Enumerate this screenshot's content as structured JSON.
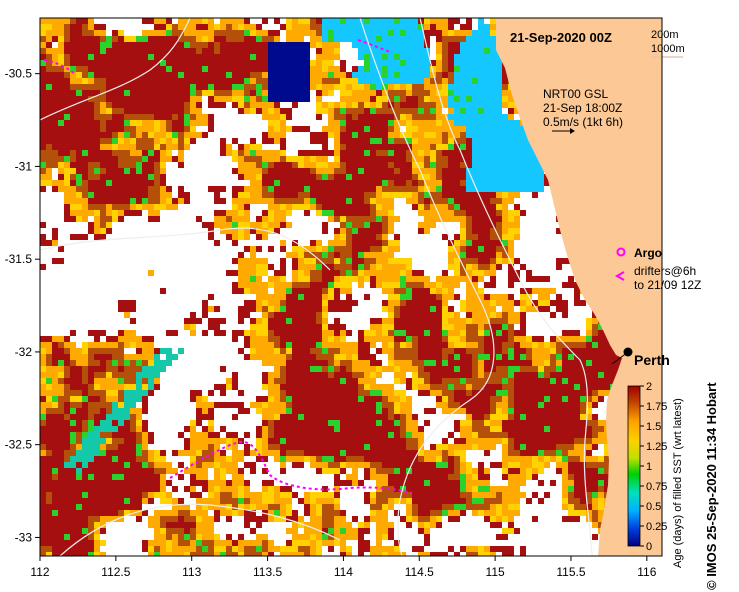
{
  "header": {
    "date_label": "21-Sep-2020 00Z",
    "depth_contour_1": "200m",
    "depth_contour_2": "1000m"
  },
  "current_legend": {
    "line1": "NRT00 GSL",
    "line2": "21-Sep 18:00Z",
    "line3": "0.5m/s (1kt 6h)"
  },
  "markers": {
    "argo_label": "Argo",
    "drifters_line1": "drifters@6h",
    "drifters_line2": "to 21/09 12Z"
  },
  "city": {
    "name": "Perth",
    "lon": 115.86,
    "lat": -31.95
  },
  "colorbar": {
    "title": "Age (days) of filled SST (wrt latest)",
    "ticks": [
      "0",
      "0.25",
      "0.5",
      "0.75",
      "1",
      "1.25",
      "1.5",
      "1.75",
      "2"
    ],
    "stops": [
      "#000080",
      "#0040e0",
      "#00b0ff",
      "#00e0c0",
      "#00d000",
      "#c0e000",
      "#ffd000",
      "#ffa000",
      "#c04000",
      "#a00000"
    ]
  },
  "credit": "© IMOS 25-Sep-2020 11:34 Hobart",
  "axes": {
    "x_ticks": [
      "112",
      "112.5",
      "113",
      "113.5",
      "114",
      "114.5",
      "115",
      "115.5",
      "116"
    ],
    "y_ticks": [
      "-30.5",
      "-31",
      "-31.5",
      "-32",
      "-32.5",
      "-33"
    ],
    "lon_range": [
      112,
      116.1
    ],
    "lat_range": [
      -33.1,
      -30.2
    ]
  },
  "colors": {
    "land": "#fcc896",
    "dark_red": "#a50f0f",
    "brown": "#b4500a",
    "orange": "#ffaa00",
    "yellow": "#ffd200",
    "green": "#2cd22c",
    "cyan": "#14c8ff",
    "teal": "#14c8aa",
    "navy": "#000a8c"
  }
}
